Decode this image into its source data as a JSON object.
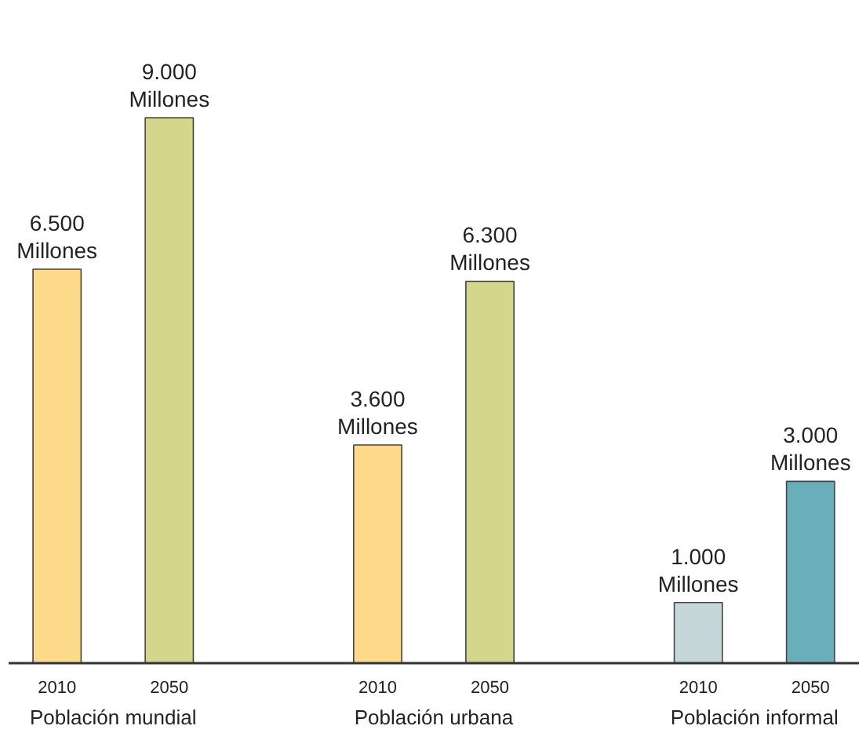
{
  "chart_data": {
    "type": "bar",
    "categories": [
      "2010",
      "2050",
      "2010",
      "2050",
      "2010",
      "2050"
    ],
    "values": [
      6500,
      9000,
      3600,
      6300,
      1000,
      3000
    ],
    "colors": [
      "#fdd98a",
      "#d3d68c",
      "#fdd98a",
      "#d3d68c",
      "#c5d7d9",
      "#6aaebb"
    ],
    "value_labels": [
      "6.500\nMillones",
      "9.000\nMillones",
      "3.600\nMillones",
      "6.300\nMillones",
      "1.000\nMillones",
      "3.000\nMillones"
    ],
    "annotations": [
      "Población mundial",
      "Población urbana",
      "Población informal"
    ]
  }
}
